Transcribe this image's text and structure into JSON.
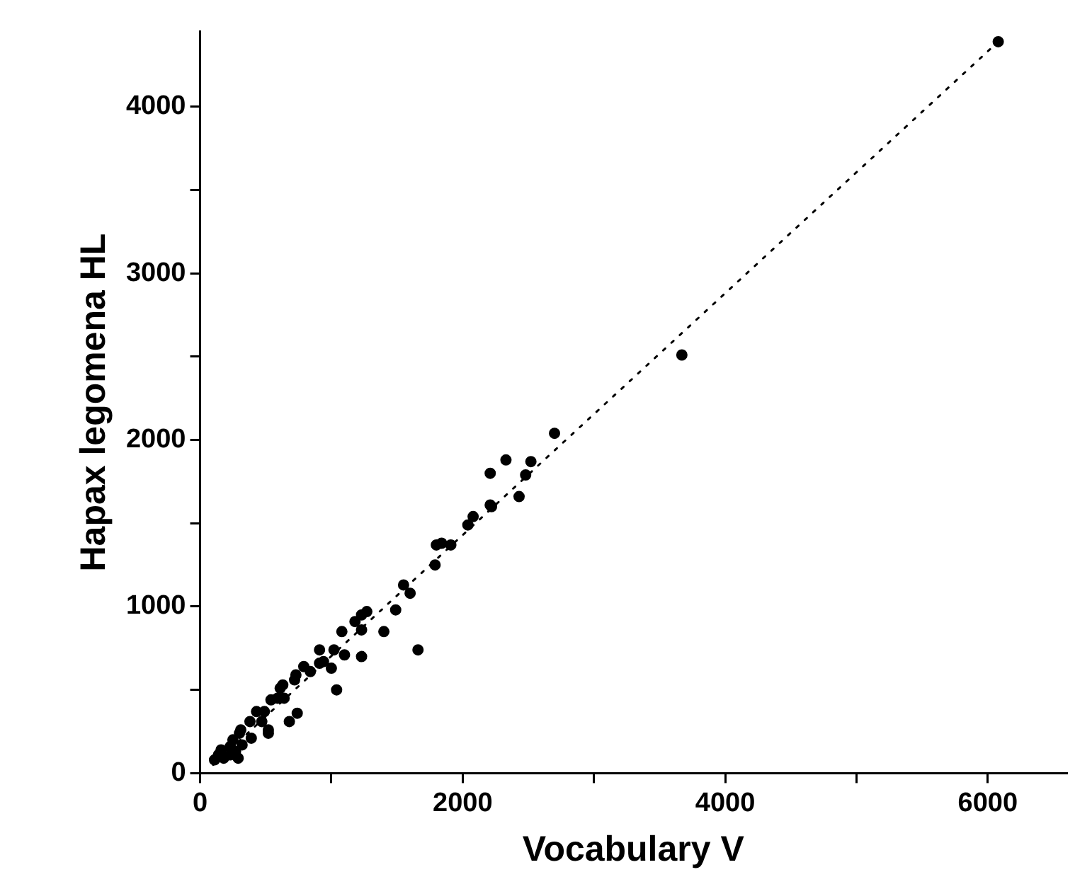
{
  "chart_data": {
    "type": "scatter",
    "xlabel": "Vocabulary V",
    "ylabel": "Hapax legomena HL",
    "xlim": [
      0,
      6600
    ],
    "ylim": [
      0,
      4450
    ],
    "xticks": [
      0,
      {
        "value": 1000,
        "label": null
      },
      2000,
      {
        "value": 3000,
        "label": null
      },
      4000,
      {
        "value": 5000,
        "label": null
      },
      6000
    ],
    "yticks": [
      0,
      {
        "value": 500,
        "label": null
      },
      1000,
      {
        "value": 1500,
        "label": null
      },
      2000,
      {
        "value": 2500,
        "label": null
      },
      3000,
      {
        "value": 3500,
        "label": null
      },
      4000
    ],
    "grid": false,
    "legend": false,
    "marker": "circle",
    "series": [
      {
        "color": "#000000",
        "x": [
          6080,
          3670,
          2700,
          2330,
          2210,
          2520,
          2480,
          2430,
          2210,
          2220,
          2040,
          2080,
          1790,
          1800,
          1840,
          1910,
          1550,
          1600,
          1660,
          1490,
          1400,
          1270,
          1230,
          1180,
          1080,
          1230,
          1230,
          1100,
          1020,
          1040,
          1000,
          910,
          910,
          940,
          840,
          790,
          730,
          720,
          740,
          680,
          630,
          610,
          640,
          590,
          540,
          520,
          520,
          490,
          470,
          430,
          390,
          380,
          310,
          300,
          290,
          320,
          250,
          230,
          160,
          140,
          110,
          180,
          230,
          270
        ],
        "values": [
          4390,
          2510,
          2040,
          1880,
          1800,
          1870,
          1790,
          1660,
          1610,
          1600,
          1490,
          1540,
          1250,
          1370,
          1380,
          1370,
          1130,
          1080,
          740,
          980,
          850,
          970,
          950,
          910,
          850,
          860,
          700,
          710,
          740,
          500,
          630,
          740,
          660,
          670,
          610,
          640,
          590,
          560,
          360,
          310,
          530,
          510,
          450,
          450,
          440,
          260,
          240,
          370,
          310,
          370,
          210,
          310,
          260,
          240,
          90,
          170,
          200,
          160,
          140,
          110,
          80,
          90,
          110,
          130
        ]
      },
      {
        "type": "line",
        "color": "#000000",
        "line_style": "dotted",
        "marker": "none",
        "x": [
          100,
          6080
        ],
        "values": [
          50,
          4390
        ]
      }
    ]
  }
}
